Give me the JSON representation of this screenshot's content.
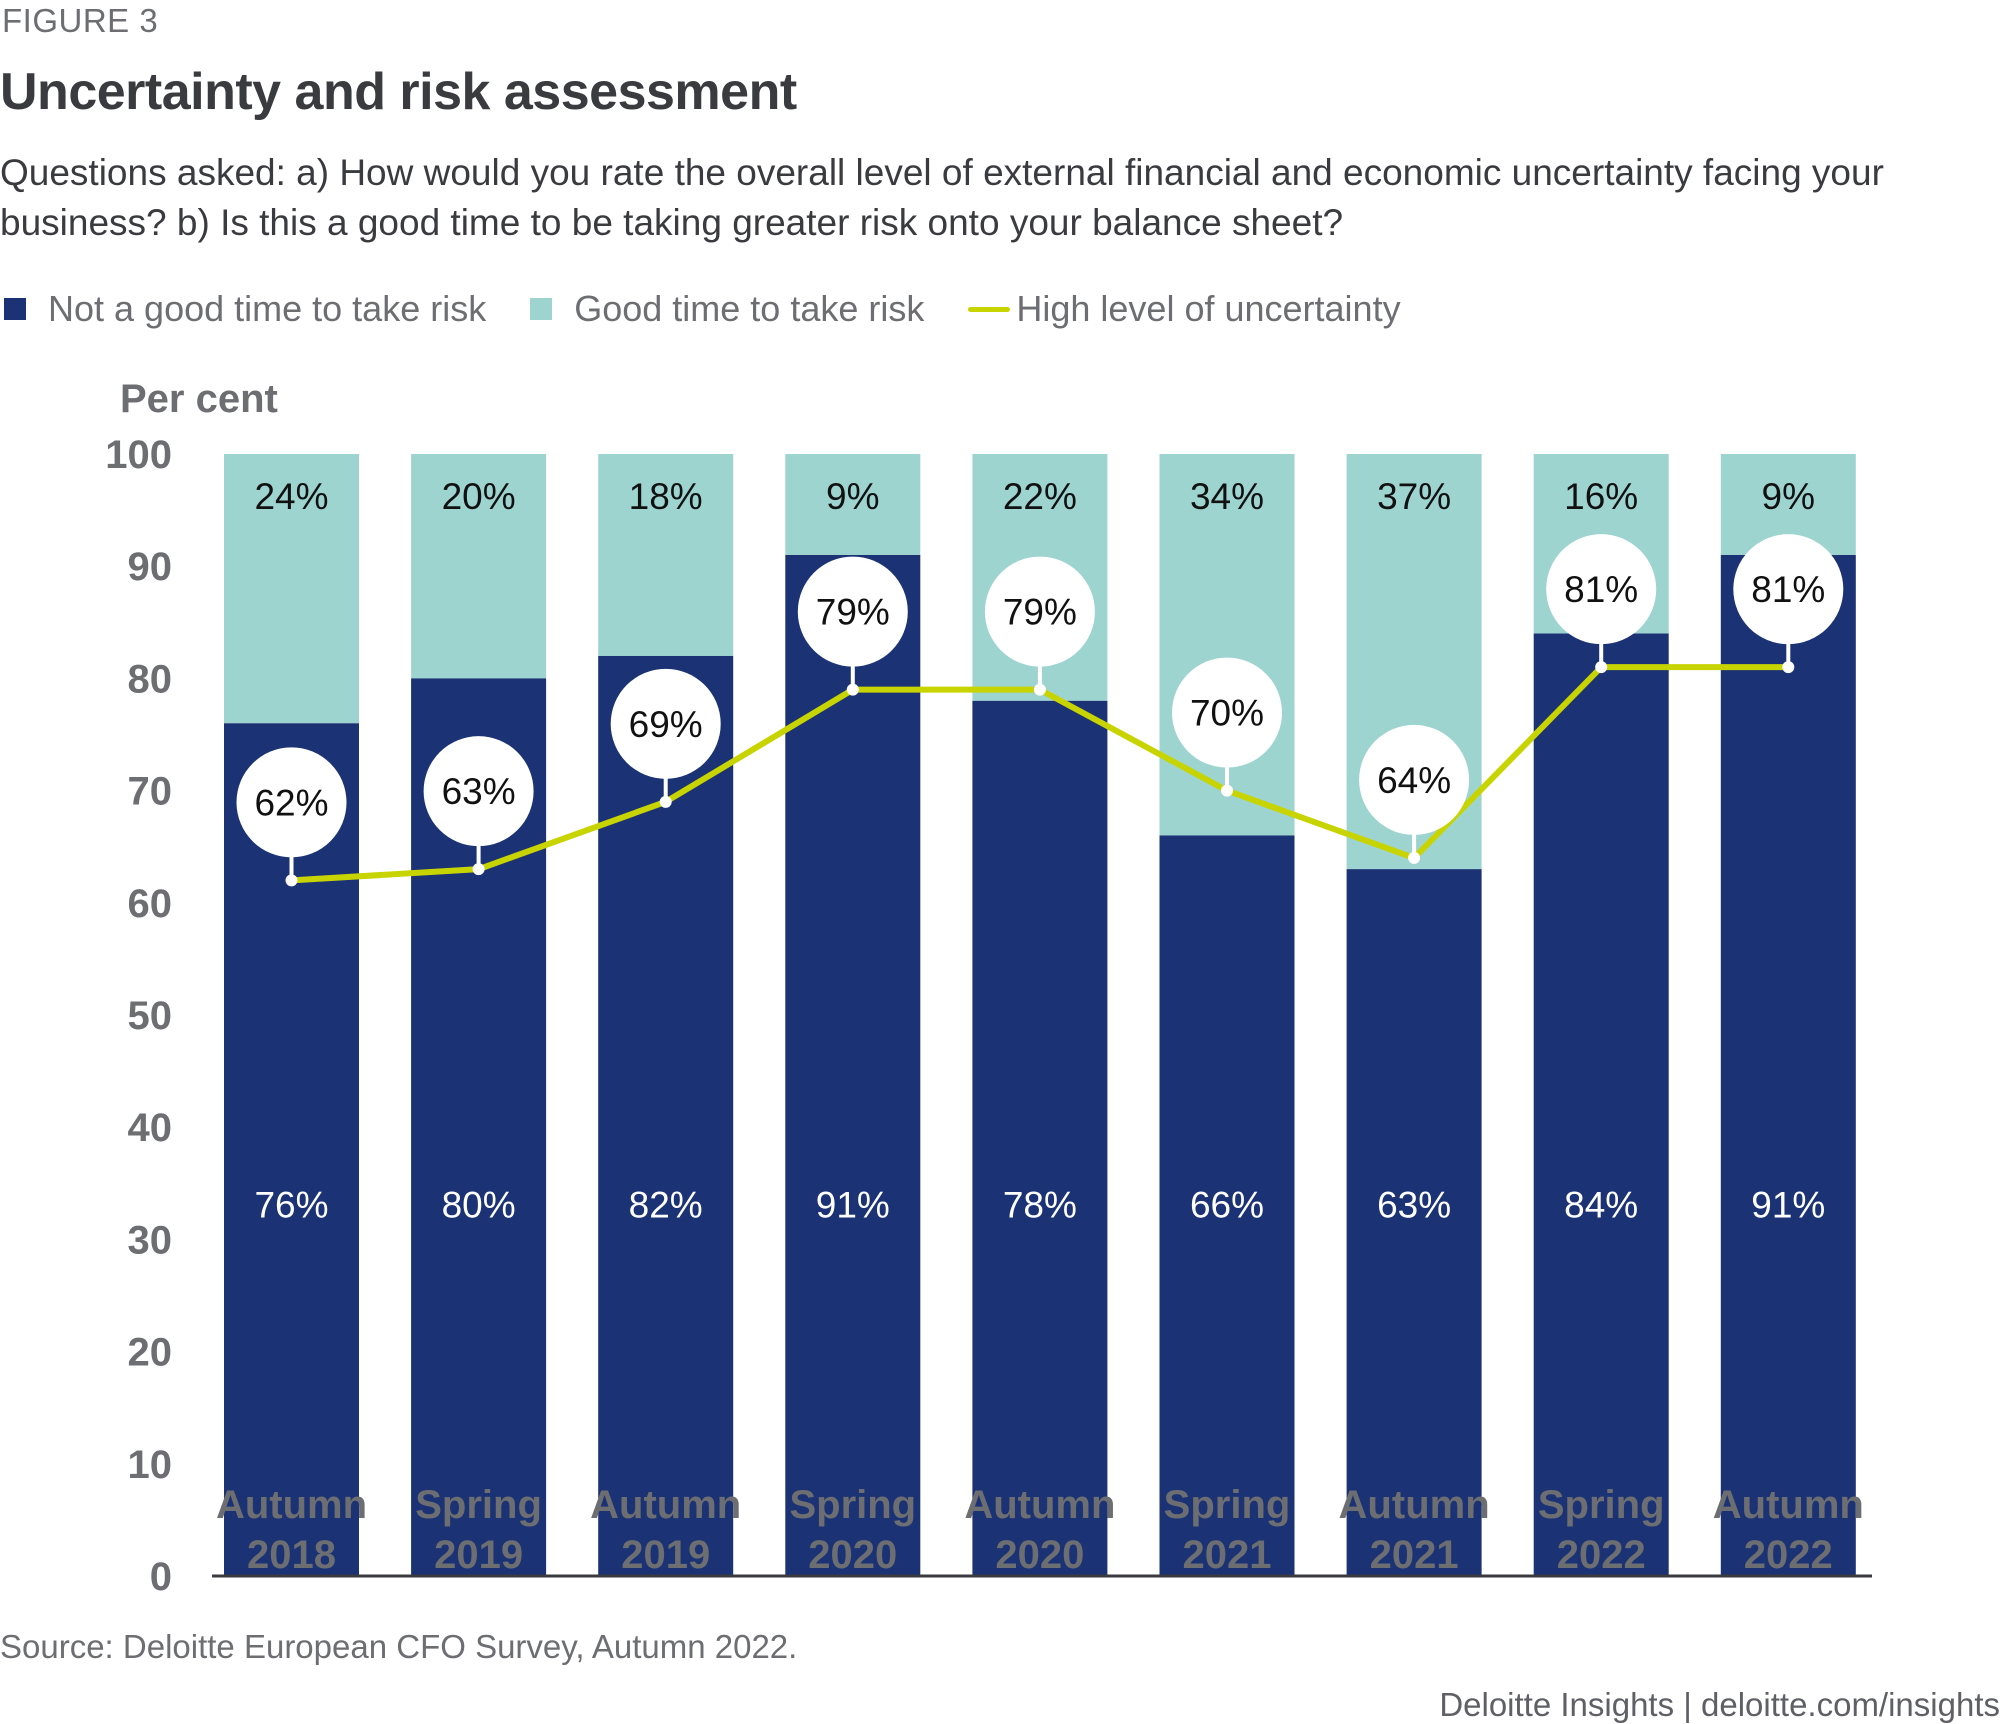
{
  "figure_label": "FIGURE 3",
  "title": "Uncertainty and risk assessment",
  "subtitle": "Questions asked: a) How would you rate the overall level of external financial and economic uncertainty facing your business? b) Is this a good time to be taking greater risk onto your balance sheet?",
  "legend": [
    {
      "label": "Not a good time to take risk",
      "type": "square",
      "color": "#1b3275"
    },
    {
      "label": "Good time to take risk",
      "type": "square",
      "color": "#9ed4d0"
    },
    {
      "label": "High level of uncertainty",
      "type": "line",
      "color": "#c8d400"
    }
  ],
  "source": "Source: Deloitte European CFO Survey, Autumn 2022.",
  "footer": "Deloitte Insights | deloitte.com/insights",
  "chart_data": {
    "type": "bar",
    "stacked": true,
    "title": "Uncertainty and risk assessment",
    "ylabel": "Per cent",
    "xlabel": "",
    "ylim": [
      0,
      100
    ],
    "yticks": [
      0,
      10,
      20,
      30,
      40,
      50,
      60,
      70,
      80,
      90,
      100
    ],
    "grid": false,
    "legend_position": "top-left",
    "categories": [
      [
        "Autumn",
        "2018"
      ],
      [
        "Spring",
        "2019"
      ],
      [
        "Autumn",
        "2019"
      ],
      [
        "Spring",
        "2020"
      ],
      [
        "Autumn",
        "2020"
      ],
      [
        "Spring",
        "2021"
      ],
      [
        "Autumn",
        "2021"
      ],
      [
        "Spring",
        "2022"
      ],
      [
        "Autumn",
        "2022"
      ]
    ],
    "series": [
      {
        "name": "Not a good time to take risk",
        "type": "bar",
        "color": "#1b3275",
        "values": [
          76,
          80,
          82,
          91,
          78,
          66,
          63,
          84,
          91
        ],
        "labels": [
          "76%",
          "80%",
          "82%",
          "91%",
          "78%",
          "66%",
          "63%",
          "84%",
          "91%"
        ]
      },
      {
        "name": "Good time to take risk",
        "type": "bar",
        "color": "#9ed4d0",
        "values": [
          24,
          20,
          18,
          9,
          22,
          34,
          37,
          16,
          9
        ],
        "labels": [
          "24%",
          "20%",
          "18%",
          "9%",
          "22%",
          "34%",
          "37%",
          "16%",
          "9%"
        ]
      },
      {
        "name": "High level of uncertainty",
        "type": "line",
        "color": "#c8d400",
        "values": [
          62,
          63,
          69,
          79,
          79,
          70,
          64,
          81,
          81
        ],
        "labels": [
          "62%",
          "63%",
          "69%",
          "79%",
          "79%",
          "70%",
          "64%",
          "81%",
          "81%"
        ]
      }
    ]
  }
}
